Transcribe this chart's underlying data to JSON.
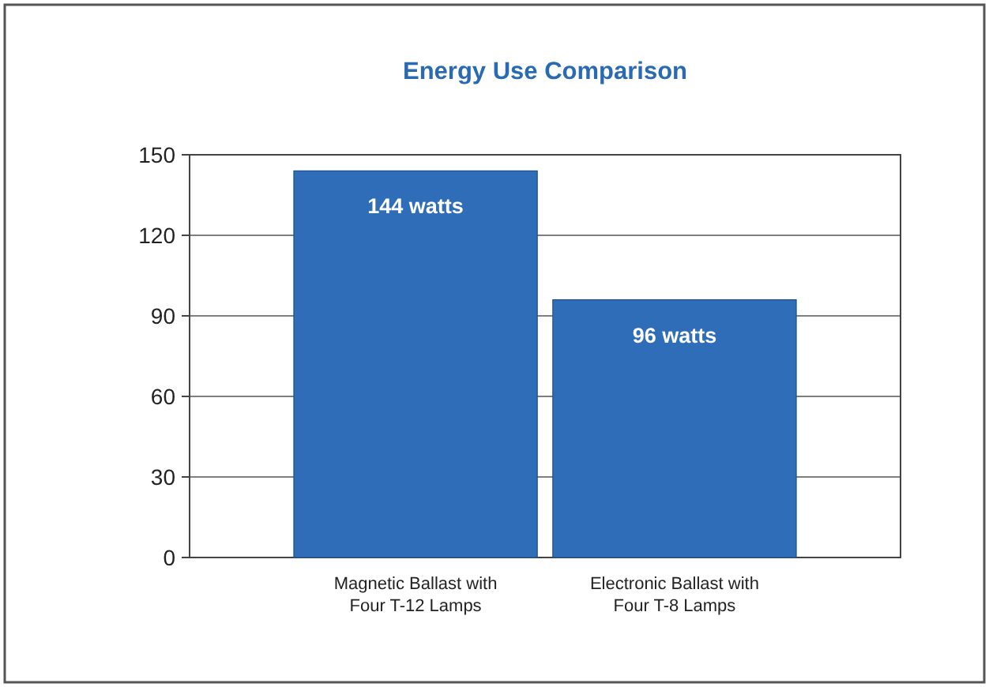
{
  "chart_data": {
    "type": "bar",
    "title": "Energy Use Comparison",
    "categories": [
      "Magnetic Ballast with\nFour T-12 Lamps",
      "Electronic Ballast with\nFour T-8 Lamps"
    ],
    "values": [
      144,
      96
    ],
    "color": "#2f6db8",
    "value_labels": [
      "144 watts",
      "96 watts"
    ],
    "ylim": [
      0,
      150
    ],
    "yticks": [
      0,
      30,
      60,
      90,
      120,
      150
    ],
    "grid": "y"
  }
}
